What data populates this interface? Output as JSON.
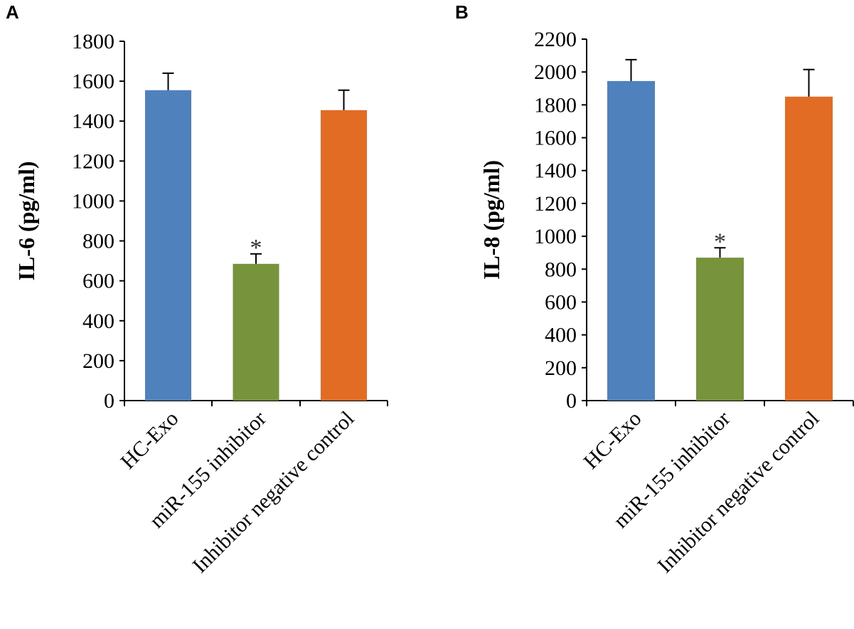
{
  "chart_data": [
    {
      "type": "bar",
      "panel": "A",
      "title": "",
      "xlabel": "",
      "ylabel": "IL-6 (pg/ml)",
      "ylim": [
        0,
        1800
      ],
      "yticks": [
        0,
        200,
        400,
        600,
        800,
        1000,
        1200,
        1400,
        1600,
        1800
      ],
      "categories": [
        "HC-Exo",
        "miR-155 inhibitor",
        "Inhibitor negative control"
      ],
      "values": [
        1555,
        685,
        1455
      ],
      "errors": [
        85,
        50,
        100
      ],
      "colors": [
        "#4F81BD",
        "#77933C",
        "#E36C25"
      ],
      "significance": [
        "",
        "*",
        ""
      ],
      "grid": false
    },
    {
      "type": "bar",
      "panel": "B",
      "title": "",
      "xlabel": "",
      "ylabel": "IL-8 (pg/ml)",
      "ylim": [
        0,
        2200
      ],
      "yticks": [
        0,
        200,
        400,
        600,
        800,
        1000,
        1200,
        1400,
        1600,
        1800,
        2000,
        2200
      ],
      "categories": [
        "HC-Exo",
        "miR-155 inhibitor",
        "Inhibitor negative control"
      ],
      "values": [
        1945,
        870,
        1850
      ],
      "errors": [
        130,
        60,
        165
      ],
      "colors": [
        "#4F81BD",
        "#77933C",
        "#E36C25"
      ],
      "significance": [
        "",
        "*",
        ""
      ],
      "grid": false
    }
  ]
}
